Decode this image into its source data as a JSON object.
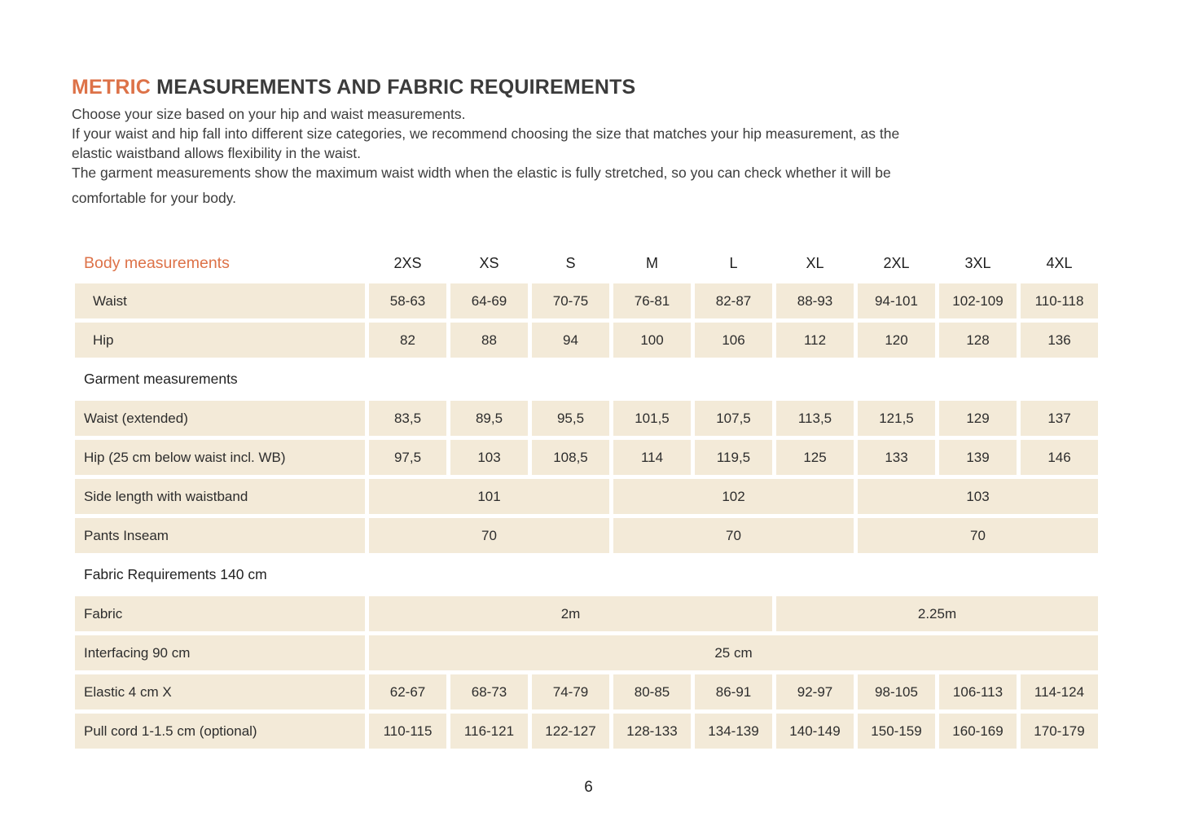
{
  "colors": {
    "accent_orange": "#dd7248",
    "cell_beige": "#f3ead8",
    "text_dark": "#2d2d2d"
  },
  "page": {
    "title": {
      "highlight": "METRIC",
      "rest": " MEASUREMENTS AND FABRIC REQUIREMENTS"
    },
    "intro_lines": [
      "Choose your size based on your hip and waist measurements.",
      "If your waist and hip fall into different size categories, we recommend choosing the size that matches your hip measurement, as the",
      "elastic waistband allows flexibility in the waist.",
      "The garment measurements show the maximum waist width when the elastic is fully stretched, so you can check whether it will be",
      "comfortable for your body."
    ],
    "page_number": "6"
  },
  "table": {
    "header": {
      "label": "Body measurements",
      "sizes": [
        "2XS",
        "XS",
        "S",
        "M",
        "L",
        "XL",
        "2XL",
        "3XL",
        "4XL"
      ]
    },
    "sections": {
      "garment": "Garment measurements",
      "fabric": "Fabric Requirements 140 cm"
    },
    "rows": {
      "waist": {
        "label": "Waist",
        "values": [
          "58-63",
          "64-69",
          "70-75",
          "76-81",
          "82-87",
          "88-93",
          "94-101",
          "102-109",
          "110-118"
        ]
      },
      "hip": {
        "label": "Hip",
        "values": [
          "82",
          "88",
          "94",
          "100",
          "106",
          "112",
          "120",
          "128",
          "136"
        ]
      },
      "waist_extended": {
        "label": "Waist (extended)",
        "values": [
          "83,5",
          "89,5",
          "95,5",
          "101,5",
          "107,5",
          "113,5",
          "121,5",
          "129",
          "137"
        ]
      },
      "hip_garment": {
        "label": "Hip (25 cm below waist incl. WB)",
        "values": [
          "97,5",
          "103",
          "108,5",
          "114",
          "119,5",
          "125",
          "133",
          "139",
          "146"
        ]
      },
      "side_length": {
        "label": "Side length with waistband",
        "values": [
          "101",
          "102",
          "103"
        ]
      },
      "inseam": {
        "label": "Pants Inseam",
        "values": [
          "70",
          "70",
          "70"
        ]
      },
      "fabric": {
        "label": "Fabric",
        "values": [
          "2m",
          "2.25m"
        ]
      },
      "interfacing": {
        "label": "Interfacing 90 cm",
        "value": "25 cm"
      },
      "elastic": {
        "label": "Elastic 4 cm X",
        "values": [
          "62-67",
          "68-73",
          "74-79",
          "80-85",
          "86-91",
          "92-97",
          "98-105",
          "106-113",
          "114-124"
        ]
      },
      "pull_cord": {
        "label": "Pull cord 1-1.5 cm (optional)",
        "values": [
          "110-115",
          "116-121",
          "122-127",
          "128-133",
          "134-139",
          "140-149",
          "150-159",
          "160-169",
          "170-179"
        ]
      }
    }
  }
}
